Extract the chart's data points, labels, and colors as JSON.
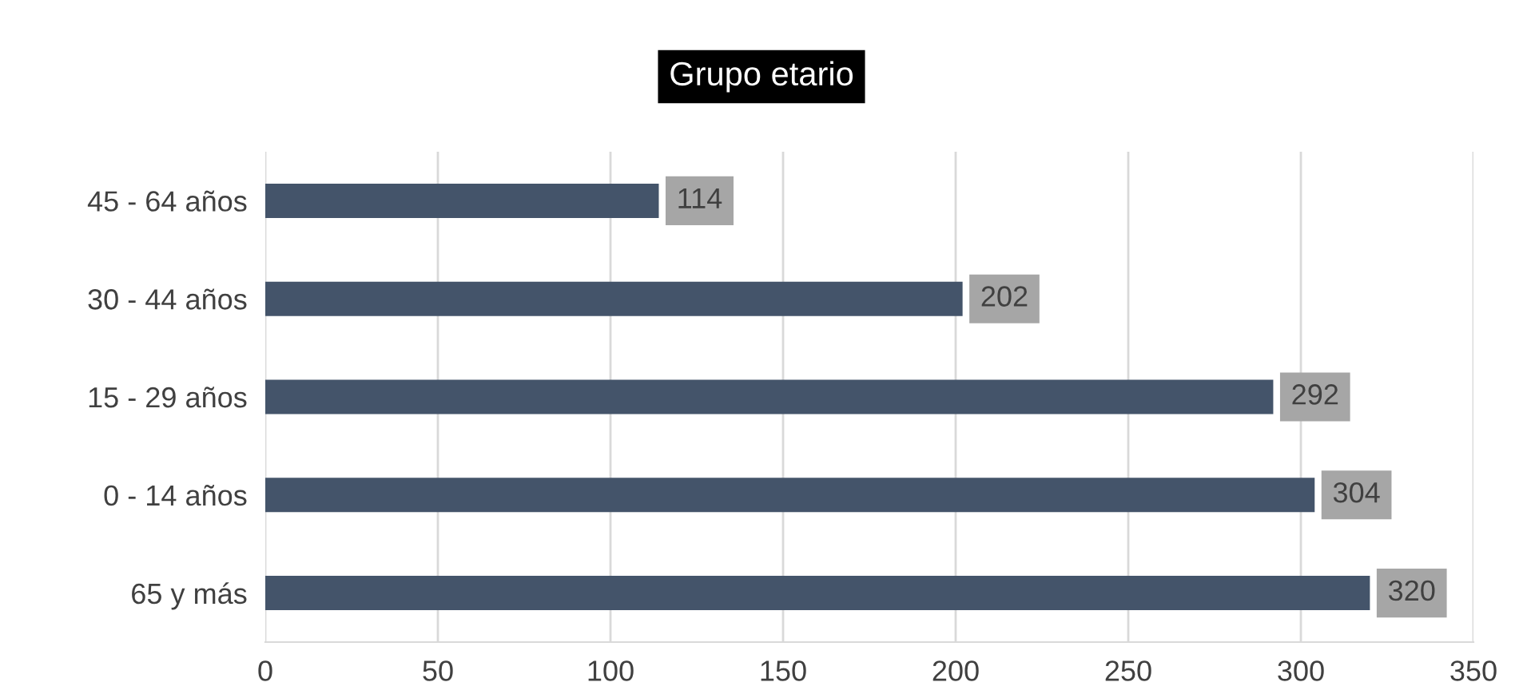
{
  "chart_data": {
    "type": "bar",
    "orientation": "horizontal",
    "title": "Grupo etario",
    "categories": [
      "45 - 64 años",
      "30 - 44 años",
      "15 - 29 años",
      "0 - 14 años",
      "65 y más"
    ],
    "values": [
      114,
      202,
      292,
      304,
      320
    ],
    "color": "#44546a",
    "xlim": [
      0,
      350
    ],
    "xticks": [
      0,
      50,
      100,
      150,
      200,
      250,
      300,
      350
    ],
    "grid": "x",
    "data_labels": true
  }
}
